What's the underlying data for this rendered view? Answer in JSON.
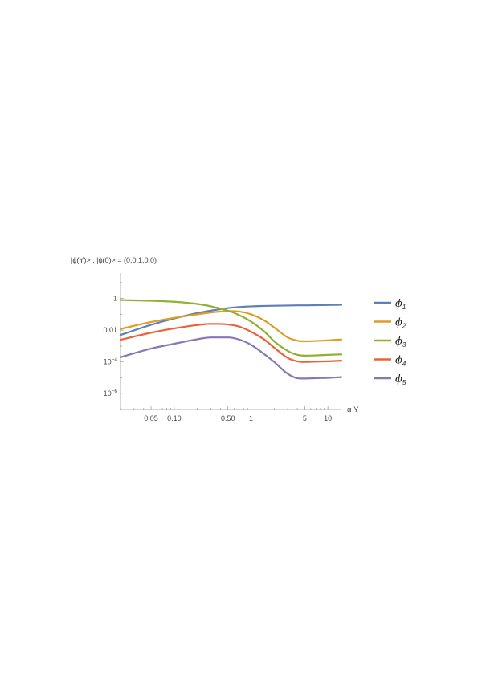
{
  "chart_data": {
    "type": "line",
    "title": "|ϕ(Y)> , |ϕ(0)> = (0,0,1,0,0)",
    "xlabel": "α Y",
    "ylabel": "",
    "x_scale": "log",
    "y_scale": "log",
    "xlim": [
      0.02,
      15
    ],
    "ylim": [
      1e-07,
      40
    ],
    "x_ticks": [
      {
        "value": 0.05,
        "label": "0.05"
      },
      {
        "value": 0.1,
        "label": "0.10"
      },
      {
        "value": 0.5,
        "label": "0.50"
      },
      {
        "value": 1,
        "label": "1"
      },
      {
        "value": 5,
        "label": "5"
      },
      {
        "value": 10,
        "label": "10"
      }
    ],
    "y_ticks": [
      {
        "value": 1,
        "base": "1",
        "exp": ""
      },
      {
        "value": 0.01,
        "base": "0.01",
        "exp": ""
      },
      {
        "value": 0.0001,
        "base": "10",
        "exp": "−4"
      },
      {
        "value": 1e-06,
        "base": "10",
        "exp": "−6"
      }
    ],
    "legend_position": "right",
    "x": [
      0.02,
      0.05,
      0.1,
      0.2,
      0.3,
      0.5,
      0.7,
      1,
      1.5,
      2,
      3,
      4,
      5,
      7,
      10,
      15
    ],
    "series": [
      {
        "name": "ϕ",
        "sub": "1",
        "color": "#5e81b5",
        "values": [
          0.005,
          0.022,
          0.055,
          0.12,
          0.17,
          0.25,
          0.29,
          0.32,
          0.34,
          0.35,
          0.36,
          0.37,
          0.37,
          0.38,
          0.39,
          0.4
        ]
      },
      {
        "name": "ϕ",
        "sub": "2",
        "color": "#e19c24",
        "values": [
          0.012,
          0.033,
          0.06,
          0.1,
          0.13,
          0.16,
          0.15,
          0.1,
          0.04,
          0.015,
          0.0035,
          0.0022,
          0.002,
          0.0021,
          0.0023,
          0.0026
        ]
      },
      {
        "name": "ϕ",
        "sub": "3",
        "color": "#8fb032",
        "values": [
          0.8,
          0.72,
          0.62,
          0.45,
          0.32,
          0.17,
          0.09,
          0.035,
          0.008,
          0.002,
          0.0005,
          0.00028,
          0.00025,
          0.00026,
          0.00028,
          0.0003
        ]
      },
      {
        "name": "ϕ",
        "sub": "4",
        "color": "#eb6235",
        "values": [
          0.0025,
          0.007,
          0.013,
          0.021,
          0.025,
          0.023,
          0.017,
          0.008,
          0.0025,
          0.0008,
          0.00018,
          0.00011,
          0.0001,
          0.000105,
          0.00011,
          0.00012
        ]
      },
      {
        "name": "ϕ",
        "sub": "5",
        "color": "#8778b3",
        "values": [
          0.0002,
          0.0007,
          0.0014,
          0.0027,
          0.0035,
          0.0035,
          0.0026,
          0.0012,
          0.0003,
          0.0001,
          1.8e-05,
          9.5e-06,
          9e-06,
          9.5e-06,
          1e-05,
          1.1e-05
        ]
      }
    ]
  }
}
